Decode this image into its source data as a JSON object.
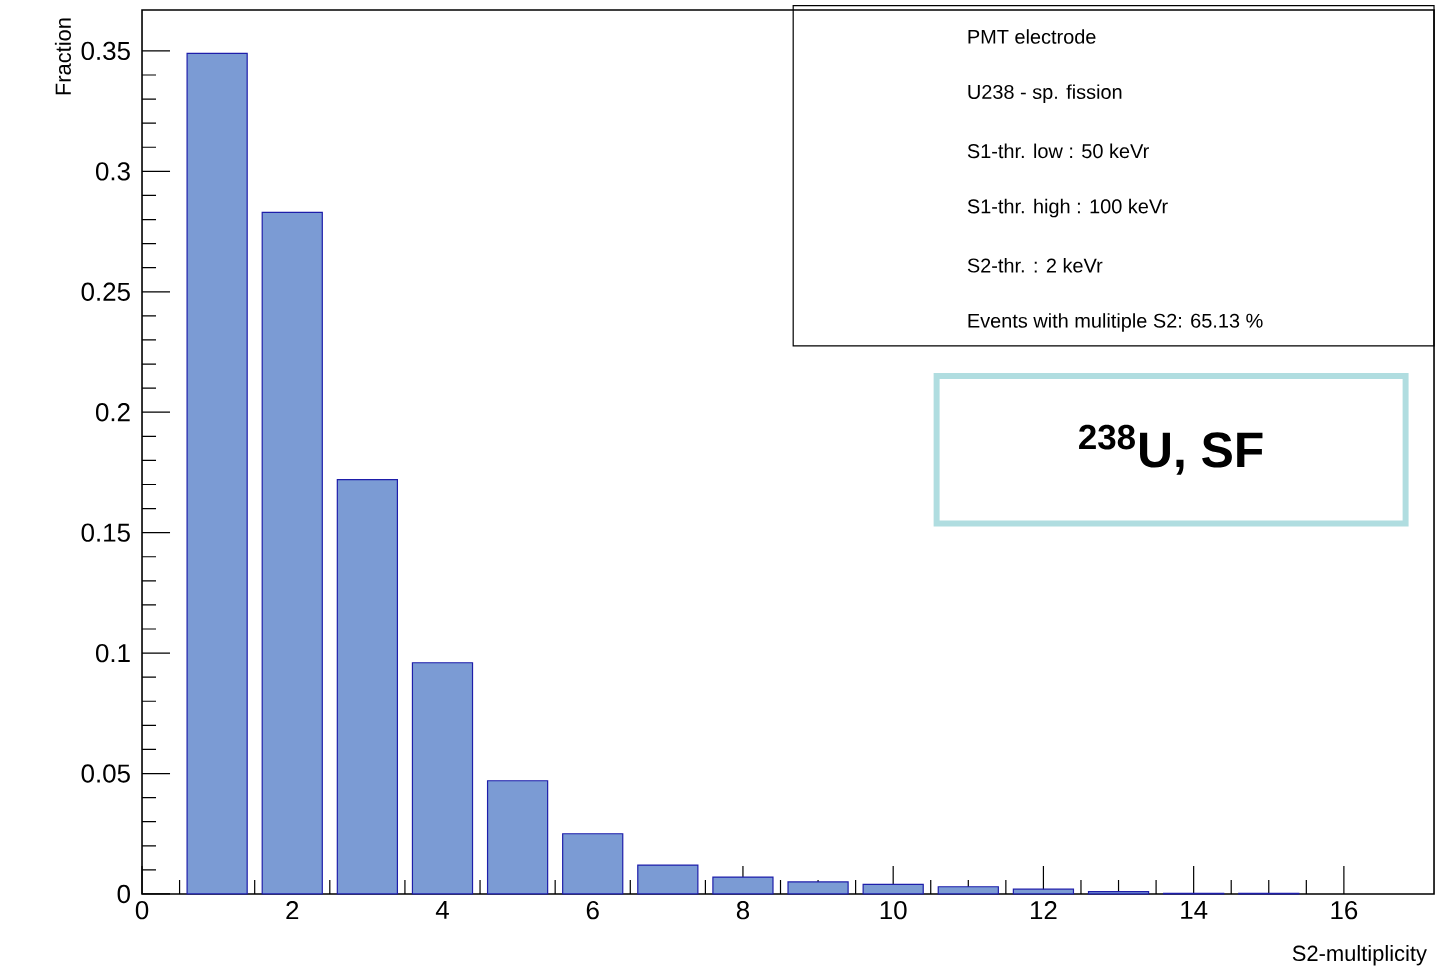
{
  "chart_data": {
    "type": "bar",
    "xlabel": "S2-multiplicity",
    "ylabel": "Fraction",
    "x": [
      1,
      2,
      3,
      4,
      5,
      6,
      7,
      8,
      9,
      10,
      11,
      12,
      13,
      14,
      15
    ],
    "values": [
      0.349,
      0.283,
      0.172,
      0.096,
      0.047,
      0.025,
      0.012,
      0.007,
      0.005,
      0.004,
      0.003,
      0.002,
      0.001,
      0.0003,
      0.0003
    ],
    "color": "#7b9bd4",
    "xlim": [
      0,
      17.2
    ],
    "ylim": [
      0,
      0.367
    ],
    "xticks": [
      0,
      2,
      4,
      6,
      8,
      10,
      12,
      14,
      16
    ],
    "yticks": [
      0,
      0.05,
      0.1,
      0.15,
      0.2,
      0.25,
      0.3,
      0.35
    ],
    "grid": false,
    "annotations": [
      "PMT electrode",
      "U238 - sp. fission",
      "S1-thr. low : 50 keVr",
      "S1-thr. high : 100 keVr",
      "S2-thr. : 2 keVr",
      "Events with mulitiple S2: 65.13 %",
      "$^{238}$U, SF"
    ]
  }
}
